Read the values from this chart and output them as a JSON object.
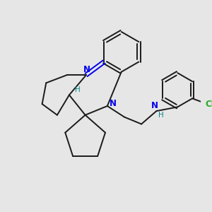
{
  "background_color": "#e6e6e6",
  "bond_color": "#1a1a1a",
  "N_color": "#0000ee",
  "Cl_color": "#22aa22",
  "H_color": "#008888",
  "figsize": [
    3.0,
    3.0
  ],
  "dpi": 100,
  "xlim": [
    0,
    10
  ],
  "ylim": [
    0,
    10
  ]
}
